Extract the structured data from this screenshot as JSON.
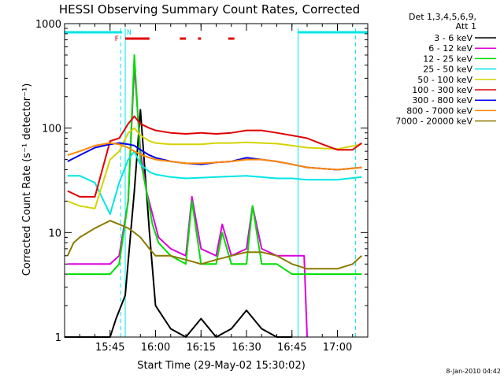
{
  "chart_data": {
    "type": "line",
    "title": "HESSI Observing Summary Count Rates, Corrected",
    "xlabel": "Start Time (29-May-02 15:30:02)",
    "ylabel": "Corrected Count Rate (s⁻¹ detector⁻¹)",
    "y_scale": "log",
    "ylim": [
      1,
      1000
    ],
    "xlim": [
      "15:30:02",
      "17:10:00"
    ],
    "x_ticks": [
      "15:45",
      "16:00",
      "16:15",
      "16:30",
      "16:45",
      "17:00"
    ],
    "y_ticks": [
      "1",
      "10",
      "100",
      "1000"
    ],
    "legend_header": [
      "Det 1,3,4,5,6,9,",
      "Att 1"
    ],
    "legend_placement": "right",
    "flags": {
      "F_label": "F",
      "N_label": "N",
      "night_color": "#00e5e5",
      "flare_color": "#e00000"
    },
    "timestamp": "8-Jan-2010 04:42",
    "series": [
      {
        "name": "3 - 6 keV",
        "color": "#000000",
        "x": [
          "15:30",
          "15:40",
          "15:45",
          "15:47",
          "15:50",
          "15:53",
          "15:55",
          "15:58",
          "16:00",
          "16:05",
          "16:10",
          "16:15",
          "16:20",
          "16:25",
          "16:30",
          "16:35",
          "16:40",
          "16:45"
        ],
        "y": [
          1,
          1,
          1,
          1.5,
          2.5,
          25,
          150,
          10,
          2,
          1.2,
          1,
          1.5,
          1,
          1.2,
          1.8,
          1.2,
          1,
          1
        ]
      },
      {
        "name": "6 - 12 keV",
        "color": "#dd00dd",
        "x": [
          "15:31",
          "15:40",
          "15:45",
          "15:48",
          "15:51",
          "15:53",
          "15:55",
          "15:57",
          "15:59",
          "16:01",
          "16:05",
          "16:10",
          "16:12",
          "16:15",
          "16:20",
          "16:22",
          "16:25",
          "16:30",
          "16:32",
          "16:35",
          "16:40",
          "16:45",
          "16:49",
          "16:50"
        ],
        "y": [
          5,
          5,
          5,
          6,
          20,
          400,
          60,
          25,
          15,
          9,
          7,
          6,
          22,
          7,
          6,
          12,
          6,
          7,
          18,
          7,
          6,
          6,
          6,
          1
        ]
      },
      {
        "name": "12 - 25 keV",
        "color": "#00dd00",
        "x": [
          "15:31",
          "15:33",
          "15:40",
          "15:45",
          "15:48",
          "15:51",
          "15:53",
          "15:55",
          "15:57",
          "15:59",
          "16:01",
          "16:05",
          "16:10",
          "16:12",
          "16:15",
          "16:20",
          "16:22",
          "16:25",
          "16:30",
          "16:32",
          "16:35",
          "16:40",
          "16:45",
          "16:50",
          "17:00",
          "17:08"
        ],
        "y": [
          4,
          4,
          4,
          4,
          5,
          20,
          500,
          50,
          25,
          12,
          8,
          6,
          5,
          20,
          5,
          5,
          10,
          5,
          5,
          18,
          5,
          5,
          4,
          4,
          4,
          4
        ]
      },
      {
        "name": "25 - 50 keV",
        "color": "#00e5e5",
        "x": [
          "15:31",
          "15:35",
          "15:40",
          "15:45",
          "15:48",
          "15:51",
          "15:53",
          "15:55",
          "15:58",
          "16:00",
          "16:05",
          "16:10",
          "16:20",
          "16:30",
          "16:40",
          "16:45",
          "16:50",
          "17:00",
          "17:08"
        ],
        "y": [
          35,
          35,
          30,
          15,
          30,
          50,
          60,
          45,
          38,
          36,
          34,
          33,
          34,
          35,
          33,
          33,
          32,
          32,
          34
        ]
      },
      {
        "name": "50 - 100 keV",
        "color": "#d4d400",
        "x": [
          "15:31",
          "15:35",
          "15:40",
          "15:45",
          "15:48",
          "15:51",
          "15:53",
          "15:55",
          "15:58",
          "16:00",
          "16:05",
          "16:10",
          "16:15",
          "16:20",
          "16:25",
          "16:30",
          "16:35",
          "16:40",
          "16:45",
          "16:50",
          "17:00",
          "17:08"
        ],
        "y": [
          20,
          18,
          17,
          50,
          60,
          90,
          100,
          85,
          75,
          72,
          70,
          70,
          70,
          72,
          72,
          73,
          72,
          71,
          68,
          65,
          63,
          70
        ]
      },
      {
        "name": "100 - 300 keV",
        "color": "#e00000",
        "x": [
          "15:31",
          "15:35",
          "15:40",
          "15:45",
          "15:48",
          "15:51",
          "15:53",
          "15:55",
          "15:58",
          "16:00",
          "16:05",
          "16:10",
          "16:15",
          "16:20",
          "16:25",
          "16:30",
          "16:35",
          "16:40",
          "16:45",
          "16:50",
          "16:55",
          "17:00",
          "17:05",
          "17:08"
        ],
        "y": [
          25,
          22,
          22,
          75,
          80,
          110,
          130,
          110,
          100,
          95,
          90,
          88,
          90,
          88,
          90,
          95,
          95,
          90,
          85,
          80,
          70,
          62,
          62,
          72
        ]
      },
      {
        "name": "300 - 800 keV",
        "color": "#0000ee",
        "x": [
          "15:31",
          "15:35",
          "15:40",
          "15:45",
          "15:48",
          "15:51",
          "15:53",
          "15:55",
          "15:58",
          "16:00",
          "16:05",
          "16:10",
          "16:15",
          "16:20",
          "16:25",
          "16:30",
          "16:35",
          "16:40",
          "16:45",
          "16:50",
          "17:00",
          "17:08"
        ],
        "y": [
          48,
          55,
          65,
          70,
          72,
          70,
          68,
          62,
          55,
          52,
          48,
          46,
          45,
          47,
          48,
          52,
          50,
          48,
          45,
          42,
          40,
          42
        ]
      },
      {
        "name": "800 - 7000 keV",
        "color": "#ff8800",
        "x": [
          "15:31",
          "15:35",
          "15:40",
          "15:45",
          "15:48",
          "15:51",
          "15:53",
          "15:55",
          "15:58",
          "16:00",
          "16:05",
          "16:10",
          "16:15",
          "16:20",
          "16:25",
          "16:30",
          "16:35",
          "16:40",
          "16:45",
          "16:50",
          "17:00",
          "17:08"
        ],
        "y": [
          55,
          60,
          68,
          72,
          70,
          65,
          60,
          56,
          52,
          50,
          48,
          46,
          46,
          47,
          48,
          50,
          50,
          48,
          45,
          42,
          40,
          42
        ]
      },
      {
        "name": "7000 - 20000 keV",
        "color": "#8b7a00",
        "x": [
          "15:31",
          "15:33",
          "15:35",
          "15:40",
          "15:45",
          "15:48",
          "15:51",
          "15:53",
          "15:55",
          "15:58",
          "16:00",
          "16:05",
          "16:10",
          "16:15",
          "16:20",
          "16:25",
          "16:30",
          "16:35",
          "16:40",
          "16:45",
          "16:50",
          "17:00",
          "17:05",
          "17:08"
        ],
        "y": [
          6,
          8,
          9,
          11,
          13,
          12,
          11,
          10,
          9,
          7,
          6,
          6,
          5.5,
          5,
          5.5,
          6,
          6.5,
          6.5,
          6,
          5,
          4.5,
          4.5,
          5,
          6
        ]
      }
    ]
  }
}
